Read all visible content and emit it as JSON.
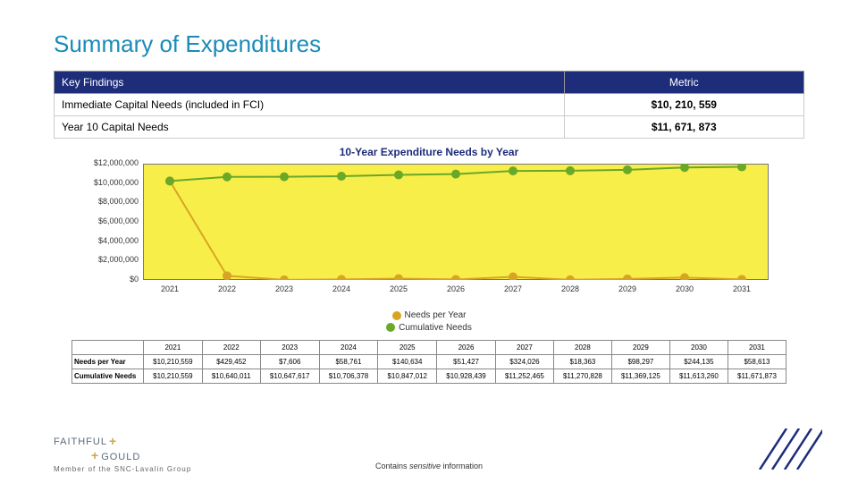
{
  "title": "Summary of Expenditures",
  "keyFindings": {
    "headers": [
      "Key Findings",
      "Metric"
    ],
    "rows": [
      {
        "label": "Immediate Capital Needs (included in FCI)",
        "value": "$10, 210, 559"
      },
      {
        "label": "Year 10 Capital Needs",
        "value": "$11, 671, 873"
      }
    ]
  },
  "chart": {
    "title": "10-Year Expenditure Needs by Year",
    "type": "line",
    "background_color": "#f8ee4a",
    "border_color": "#777777",
    "ylim": [
      0,
      12000000
    ],
    "ytick_step": 2000000,
    "yticks": [
      {
        "v": 0,
        "label": "$0"
      },
      {
        "v": 2000000,
        "label": "$2,000,000"
      },
      {
        "v": 4000000,
        "label": "$4,000,000"
      },
      {
        "v": 6000000,
        "label": "$6,000,000"
      },
      {
        "v": 8000000,
        "label": "$8,000,000"
      },
      {
        "v": 10000000,
        "label": "$10,000,000"
      },
      {
        "v": 12000000,
        "label": "$12,000,000"
      }
    ],
    "years": [
      "2021",
      "2022",
      "2023",
      "2024",
      "2025",
      "2026",
      "2027",
      "2028",
      "2029",
      "2030",
      "2031"
    ],
    "series": [
      {
        "name": "Needs per Year",
        "color": "#d8a423",
        "marker": "circle",
        "values": [
          10210559,
          429452,
          7606,
          58761,
          140634,
          51427,
          324026,
          18363,
          98297,
          244135,
          58613
        ]
      },
      {
        "name": "Cumulative Needs",
        "color": "#6aa827",
        "marker": "circle",
        "values": [
          10210559,
          10640011,
          10647617,
          10706378,
          10847012,
          10928439,
          11252465,
          11270828,
          11369125,
          11613260,
          11671873
        ]
      }
    ],
    "line_width": 2,
    "marker_size": 5,
    "font_size": 9
  },
  "dataTable": {
    "yearHeaders": [
      "2021",
      "2022",
      "2023",
      "2024",
      "2025",
      "2026",
      "2027",
      "2028",
      "2029",
      "2030",
      "2031"
    ],
    "rows": [
      {
        "label": "Needs per Year",
        "cells": [
          "$10,210,559",
          "$429,452",
          "$7,606",
          "$58,761",
          "$140,634",
          "$51,427",
          "$324,026",
          "$18,363",
          "$98,297",
          "$244,135",
          "$58,613"
        ]
      },
      {
        "label": "Cumulative Needs",
        "cells": [
          "$10,210,559",
          "$10,640,011",
          "$10,647,617",
          "$10,706,378",
          "$10,847,012",
          "$10,928,439",
          "$11,252,465",
          "$11,270,828",
          "$11,369,125",
          "$11,613,260",
          "$11,671,873"
        ]
      }
    ]
  },
  "footer": {
    "logo_top": "FAITHFUL",
    "logo_bottom": "GOULD",
    "member": "Member of the SNC-Lavalin Group",
    "center_pre": "Contains ",
    "center_em": "sensitive",
    "center_post": " information"
  },
  "colors": {
    "title": "#1a8bb8",
    "header_bg": "#1d2d7a",
    "accent": "#1d2d7a"
  }
}
